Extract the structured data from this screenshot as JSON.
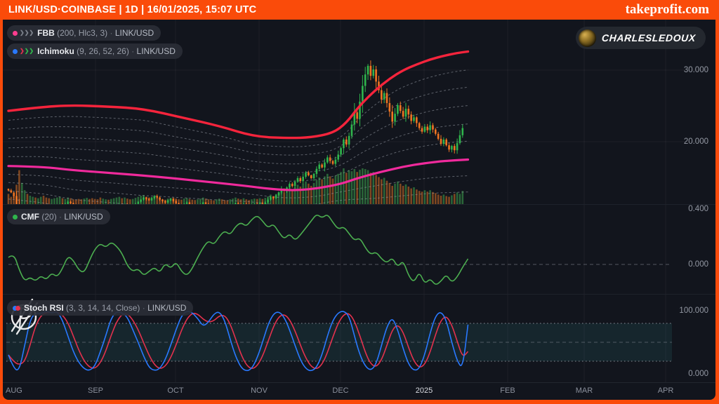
{
  "header": {
    "title": "LINK/USD·COINBASE | 1D | 16/01/2025, 15:07 UTC",
    "brand": "takeprofit.com"
  },
  "badge": {
    "username": "CHARLESLEDOUX"
  },
  "panels": {
    "price": {
      "legend_fbb": {
        "name": "FBB",
        "params": "(200, Hlc3, 3)",
        "sep": "·",
        "symbol": "LINK/USD"
      },
      "legend_ichimoku": {
        "name": "Ichimoku",
        "params": "(9, 26, 52, 26)",
        "sep": "·",
        "symbol": "LINK/USD"
      },
      "axis": {
        "upper": "30.000",
        "lower": "20.000"
      }
    },
    "cmf": {
      "legend": {
        "name": "CMF",
        "params": "(20)",
        "sep": "·",
        "symbol": "LINK/USD"
      },
      "axis": {
        "upper": "0.400",
        "lower": "0.000"
      }
    },
    "stoch": {
      "legend": {
        "name": "Stoch RSI",
        "params": "(3, 3, 14, 14, Close)",
        "sep": "·",
        "symbol": "LINK/USD"
      },
      "axis": {
        "upper": "100.000",
        "lower": "0.000"
      }
    }
  },
  "time_axis": {
    "labels": [
      "AUG",
      "SEP",
      "OCT",
      "NOV",
      "DEC",
      "2025",
      "FEB",
      "MAR",
      "APR"
    ]
  },
  "colors": {
    "frame_orange": "#fa4b0a",
    "background": "#12151d",
    "candle_up": "#2fb54c",
    "candle_down": "#ef7422",
    "volume_up": "#2e6e3c",
    "volume_down": "#8c4c22",
    "fbb_upper": "#f5243c",
    "fbb_mid": "#f02a9c",
    "fbb_fib": "#9aa0aa",
    "cmf_line": "#4caf50",
    "stoch_k": "#2979ff",
    "stoch_d": "#e4314e",
    "band_fill": "rgba(52,140,150,0.14)",
    "grid": "rgba(255,255,255,0.05)"
  },
  "chart_data": [
    {
      "type": "candlestick",
      "title": "LINK/USD daily price with FBB (200, Hlc3, 3) and Ichimoku (9, 26, 52, 26)",
      "symbol": "LINK/USD",
      "timeframe": "1D",
      "x_range_months": [
        "AUG 2024",
        "APR 2025"
      ],
      "y_axis_ticks": [
        30.0,
        20.0
      ],
      "closes": [
        13.2,
        12.9,
        12.4,
        11.1,
        9.0,
        9.8,
        10.2,
        10.0,
        10.3,
        10.5,
        10.4,
        10.7,
        10.9,
        10.6,
        10.4,
        10.2,
        10.3,
        10.6,
        10.9,
        11.2,
        11.0,
        11.3,
        11.6,
        11.4,
        11.2,
        11.0,
        10.8,
        10.7,
        10.9,
        11.1,
        11.0,
        10.8,
        10.5,
        10.3,
        10.0,
        10.2,
        10.4,
        10.1,
        10.3,
        10.6,
        10.9,
        11.1,
        10.9,
        11.2,
        11.0,
        10.8,
        11.0,
        11.3,
        11.6,
        11.9,
        12.2,
        12.0,
        11.8,
        12.1,
        12.4,
        12.2,
        11.9,
        11.7,
        11.5,
        11.8,
        12.0,
        11.7,
        11.4,
        11.2,
        11.0,
        11.3,
        11.5,
        11.2,
        11.0,
        10.8,
        11.0,
        11.2,
        11.5,
        11.3,
        11.1,
        10.9,
        10.7,
        11.0,
        11.2,
        11.0,
        10.8,
        10.6,
        10.9,
        11.1,
        11.4,
        11.2,
        11.0,
        11.3,
        11.1,
        10.9,
        11.1,
        11.3,
        11.1,
        11.4,
        11.2,
        11.5,
        11.9,
        12.3,
        12.1,
        12.5,
        12.9,
        13.4,
        13.1,
        13.6,
        14.1,
        13.8,
        14.4,
        14.9,
        14.5,
        15.1,
        15.7,
        15.3,
        14.9,
        15.5,
        16.2,
        16.8,
        16.4,
        17.1,
        17.8,
        17.3,
        16.9,
        17.5,
        18.2,
        19.1,
        20.3,
        19.6,
        20.8,
        22.4,
        24.1,
        23.2,
        25.6,
        27.8,
        29.4,
        30.6,
        29.2,
        30.1,
        28.4,
        27.2,
        25.9,
        26.8,
        25.4,
        24.2,
        22.8,
        23.9,
        25.1,
        24.3,
        23.5,
        24.6,
        23.8,
        22.9,
        23.4,
        22.6,
        21.9,
        21.4,
        22.1,
        21.6,
        22.3,
        21.7,
        21.1,
        20.4,
        19.7,
        20.3,
        19.5,
        18.9,
        19.4,
        18.8,
        19.8,
        20.9,
        21.9
      ],
      "volumes": [
        30,
        22,
        28,
        55,
        95,
        60,
        40,
        30,
        25,
        22,
        20,
        18,
        22,
        25,
        20,
        18,
        16,
        18,
        20,
        22,
        18,
        16,
        20,
        18,
        15,
        14,
        16,
        15,
        17,
        19,
        16,
        18,
        16,
        15,
        20,
        17,
        15,
        14,
        16,
        18,
        20,
        22,
        18,
        20,
        17,
        15,
        16,
        19,
        22,
        25,
        27,
        22,
        19,
        21,
        24,
        20,
        17,
        15,
        14,
        17,
        19,
        20,
        17,
        15,
        14,
        17,
        19,
        16,
        14,
        13,
        15,
        17,
        20,
        17,
        15,
        13,
        12,
        15,
        17,
        15,
        13,
        12,
        15,
        17,
        20,
        17,
        15,
        18,
        15,
        13,
        15,
        17,
        16,
        18,
        16,
        19,
        23,
        28,
        24,
        29,
        34,
        40,
        35,
        41,
        47,
        42,
        49,
        55,
        50,
        57,
        64,
        58,
        52,
        60,
        68,
        75,
        70,
        78,
        85,
        78,
        72,
        80,
        85,
        90,
        100,
        88,
        95,
        92,
        98,
        90,
        96,
        100,
        98,
        95,
        88,
        90,
        82,
        76,
        70,
        74,
        66,
        60,
        52,
        58,
        64,
        58,
        52,
        56,
        50,
        45,
        48,
        42,
        38,
        36,
        40,
        36,
        40,
        35,
        32,
        28,
        25,
        28,
        24,
        22,
        26,
        30,
        34,
        30,
        38
      ],
      "fbb_upper_band": [
        [
          0,
          24.3
        ],
        [
          11,
          24.8
        ],
        [
          23,
          25.1
        ],
        [
          37,
          24.9
        ],
        [
          50,
          24.6
        ],
        [
          65,
          23.3
        ],
        [
          78,
          22.2
        ],
        [
          91,
          20.7
        ],
        [
          104,
          20.5
        ],
        [
          112,
          20.6
        ],
        [
          120,
          21.2
        ],
        [
          125,
          22.6
        ],
        [
          130,
          25.1
        ],
        [
          136,
          27.3
        ],
        [
          141,
          28.8
        ],
        [
          146,
          30.0
        ],
        [
          151,
          30.8
        ],
        [
          156,
          31.5
        ],
        [
          161,
          32.0
        ],
        [
          166,
          32.4
        ],
        [
          170,
          32.6
        ]
      ],
      "fbb_mid_band": [
        [
          0,
          16.6
        ],
        [
          13,
          16.5
        ],
        [
          24,
          16.0
        ],
        [
          39,
          15.6
        ],
        [
          55,
          15.1
        ],
        [
          71,
          14.5
        ],
        [
          86,
          13.9
        ],
        [
          99,
          13.3
        ],
        [
          107,
          13.2
        ],
        [
          115,
          13.5
        ],
        [
          123,
          14.1
        ],
        [
          130,
          15.0
        ],
        [
          138,
          15.8
        ],
        [
          146,
          16.5
        ],
        [
          154,
          17.0
        ],
        [
          161,
          17.3
        ],
        [
          170,
          17.5
        ]
      ],
      "fib_fractions": [
        0.17,
        0.33,
        0.5,
        0.67,
        0.83,
        1.15,
        1.3,
        1.45,
        1.6
      ]
    },
    {
      "type": "line",
      "title": "CMF (20)",
      "step_days": 2,
      "y_axis_ticks": [
        0.4,
        0.0
      ],
      "values": [
        0.05,
        0.08,
        -0.04,
        -0.12,
        -0.09,
        -0.12,
        -0.08,
        -0.11,
        -0.06,
        -0.09,
        -0.03,
        0.06,
        0.03,
        -0.04,
        -0.06,
        0.03,
        0.11,
        0.15,
        0.12,
        0.16,
        0.13,
        0.08,
        -0.01,
        -0.05,
        -0.03,
        -0.08,
        -0.05,
        -0.02,
        -0.06,
        0.01,
        -0.03,
        0.02,
        -0.05,
        -0.08,
        -0.03,
        0.05,
        0.12,
        0.17,
        0.14,
        0.2,
        0.24,
        0.21,
        0.27,
        0.3,
        0.27,
        0.32,
        0.35,
        0.31,
        0.26,
        0.29,
        0.23,
        0.18,
        0.22,
        0.17,
        0.21,
        0.26,
        0.31,
        0.36,
        0.33,
        0.36,
        0.3,
        0.25,
        0.27,
        0.22,
        0.17,
        0.19,
        0.12,
        0.07,
        0.09,
        0.04,
        0.01,
        0.05,
        -0.02,
        0.03,
        -0.08,
        -0.13,
        -0.05,
        -0.14,
        -0.1,
        -0.15,
        -0.12,
        -0.07,
        -0.13,
        -0.09,
        -0.02,
        0.04
      ],
      "zero_line": 0.0
    },
    {
      "type": "line",
      "title": "Stoch RSI (3, 3, 14, 14, Close)",
      "step_days": 2,
      "y_axis_ticks": [
        100.0,
        0.0
      ],
      "levels": {
        "overbought": 80,
        "middle": 50,
        "oversold": 20
      },
      "k_values": [
        30,
        8,
        5,
        45,
        85,
        97,
        95,
        100,
        96,
        99,
        85,
        60,
        35,
        18,
        8,
        5,
        12,
        35,
        60,
        88,
        99,
        97,
        90,
        70,
        50,
        28,
        10,
        5,
        8,
        22,
        45,
        70,
        92,
        100,
        97,
        88,
        75,
        82,
        95,
        99,
        85,
        55,
        28,
        10,
        4,
        8,
        25,
        50,
        78,
        95,
        99,
        90,
        70,
        45,
        22,
        8,
        4,
        10,
        30,
        60,
        85,
        97,
        100,
        92,
        60,
        30,
        12,
        5,
        15,
        45,
        75,
        90,
        70,
        40,
        15,
        5,
        8,
        30,
        65,
        92,
        99,
        85,
        50,
        20,
        8,
        78
      ],
      "d_smoothing": 3
    }
  ]
}
